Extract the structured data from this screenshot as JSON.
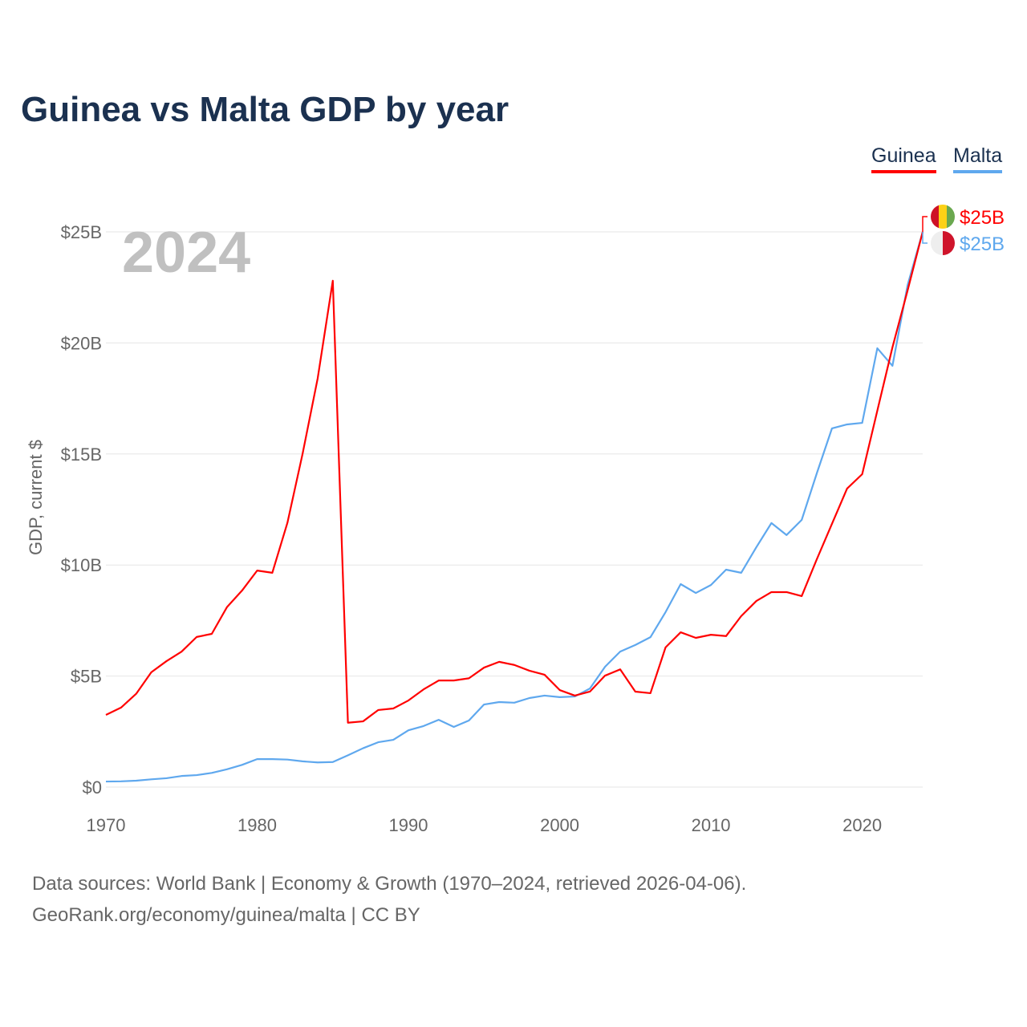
{
  "chart_data": {
    "type": "line",
    "title": "Guinea vs Malta GDP by year",
    "ylabel": "GDP, current $",
    "xlabel": "",
    "xlim": [
      1970,
      2024
    ],
    "ylim": [
      0,
      25
    ],
    "x_ticks": [
      1970,
      1980,
      1990,
      2000,
      2010,
      2020
    ],
    "x_tick_labels": [
      "1970",
      "1980",
      "1990",
      "2000",
      "2010",
      "2020"
    ],
    "y_ticks": [
      0,
      5,
      10,
      15,
      20,
      25
    ],
    "y_tick_labels": [
      "$0",
      "$5B",
      "$10B",
      "$15B",
      "$20B",
      "$25B"
    ],
    "grid": true,
    "year_label": "2024",
    "legend_position": "top-right",
    "x": [
      1970,
      1971,
      1972,
      1973,
      1974,
      1975,
      1976,
      1977,
      1978,
      1979,
      1980,
      1981,
      1982,
      1983,
      1984,
      1985,
      1986,
      1987,
      1988,
      1989,
      1990,
      1991,
      1992,
      1993,
      1994,
      1995,
      1996,
      1997,
      1998,
      1999,
      2000,
      2001,
      2002,
      2003,
      2004,
      2005,
      2006,
      2007,
      2008,
      2009,
      2010,
      2011,
      2012,
      2013,
      2014,
      2015,
      2016,
      2017,
      2018,
      2019,
      2020,
      2021,
      2022,
      2023,
      2024
    ],
    "series": [
      {
        "name": "Guinea",
        "color": "#ff0000",
        "end_label": "$25B",
        "flag_colors": [
          "#ce1126",
          "#fcd116",
          "#6aa84f"
        ],
        "values": [
          3.25,
          3.58,
          4.2,
          5.17,
          5.67,
          6.1,
          6.76,
          6.9,
          8.1,
          8.85,
          9.75,
          9.65,
          11.9,
          15.0,
          18.4,
          22.8,
          2.9,
          2.96,
          3.47,
          3.54,
          3.9,
          4.4,
          4.8,
          4.8,
          4.9,
          5.38,
          5.64,
          5.5,
          5.24,
          5.06,
          4.37,
          4.12,
          4.3,
          5.02,
          5.3,
          4.3,
          4.23,
          6.29,
          6.97,
          6.72,
          6.86,
          6.8,
          7.7,
          8.38,
          8.78,
          8.78,
          8.6,
          10.26,
          11.85,
          13.44,
          14.09,
          16.95,
          19.8,
          22.36,
          25.0
        ]
      },
      {
        "name": "Malta",
        "color": "#5fa8ee",
        "end_label": "$25B",
        "flag_colors": [
          "#eeeeee",
          "#cf142b"
        ],
        "values": [
          0.25,
          0.26,
          0.29,
          0.35,
          0.4,
          0.5,
          0.54,
          0.64,
          0.8,
          1.0,
          1.26,
          1.26,
          1.24,
          1.16,
          1.11,
          1.13,
          1.43,
          1.75,
          2.02,
          2.13,
          2.56,
          2.75,
          3.03,
          2.71,
          3.0,
          3.72,
          3.83,
          3.8,
          4.01,
          4.12,
          4.05,
          4.08,
          4.44,
          5.42,
          6.1,
          6.4,
          6.75,
          7.88,
          9.14,
          8.74,
          9.1,
          9.79,
          9.65,
          10.8,
          11.89,
          11.35,
          12.03,
          14.13,
          16.15,
          16.33,
          16.4,
          19.76,
          18.97,
          22.6,
          25.0
        ]
      }
    ]
  },
  "footer": {
    "line1": "Data sources: World Bank | Economy & Growth (1970–2024, retrieved 2026-04-06).",
    "line2": "GeoRank.org/economy/guinea/malta | CC BY"
  }
}
